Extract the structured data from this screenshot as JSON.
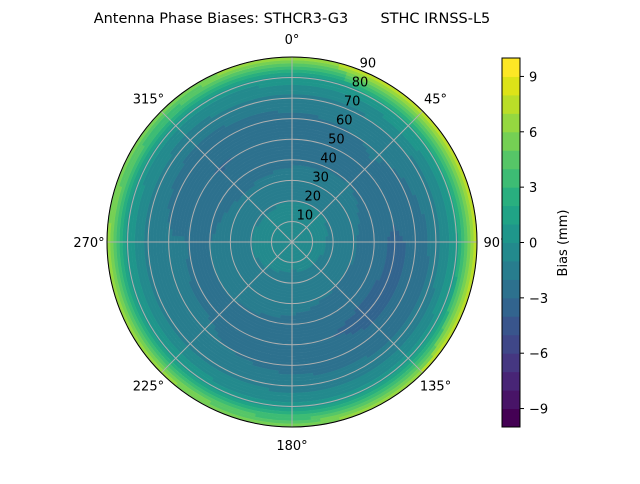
{
  "chart_data": {
    "type": "heatmap",
    "subtype": "polar-filled-contour",
    "title": "Antenna Phase Biases: STHCR3-G3       STHC IRNSS-L5",
    "colormap": "viridis",
    "colorbar": {
      "label": "Bias (mm)",
      "range": [
        -10,
        10
      ],
      "level_step": 1,
      "ticks": [
        -9,
        -6,
        -3,
        0,
        3,
        6,
        9
      ],
      "tick_labels": [
        "−9",
        "−6",
        "−3",
        "0",
        "3",
        "6",
        "9"
      ]
    },
    "theta_direction": "clockwise",
    "theta_zero": "top",
    "angle_ticks": [
      0,
      45,
      90,
      135,
      180,
      225,
      270,
      315
    ],
    "angle_tick_labels": [
      "0°",
      "45°",
      "90°",
      "135°",
      "180°",
      "225°",
      "270°",
      "315°"
    ],
    "radial_ticks": [
      10,
      20,
      30,
      40,
      50,
      60,
      70,
      80,
      90
    ],
    "radial_tick_labels": [
      "10",
      "20",
      "30",
      "40",
      "50",
      "60",
      "70",
      "80",
      "90"
    ],
    "radial_range": [
      0,
      90
    ],
    "grid": true,
    "zenith": [
      0,
      10,
      20,
      30,
      40,
      50,
      60,
      70,
      80,
      90
    ],
    "azimuth": [
      0,
      45,
      90,
      135,
      180,
      225,
      270,
      315
    ],
    "bias": [
      [
        -0.3,
        -0.3,
        -0.3,
        -0.3,
        -0.3,
        -0.3,
        -0.3,
        -0.3
      ],
      [
        -0.6,
        -0.5,
        -0.6,
        -0.7,
        -0.8,
        -0.7,
        -0.6,
        -0.7
      ],
      [
        -1.0,
        -1.0,
        -1.2,
        -1.3,
        -1.3,
        -1.1,
        -1.0,
        -1.1
      ],
      [
        -1.6,
        -1.5,
        -1.9,
        -2.0,
        -1.7,
        -1.5,
        -1.6,
        -1.8
      ],
      [
        -2.2,
        -2.0,
        -2.6,
        -2.7,
        -2.2,
        -2.0,
        -2.0,
        -2.5
      ],
      [
        -2.6,
        -2.1,
        -3.2,
        -3.3,
        -2.7,
        -2.1,
        -2.0,
        -3.1
      ],
      [
        -2.3,
        -1.9,
        -2.8,
        -2.8,
        -2.3,
        -1.9,
        -1.9,
        -2.6
      ],
      [
        -1.4,
        -1.2,
        -1.6,
        -1.7,
        -1.6,
        -1.3,
        -1.4,
        -1.6
      ],
      [
        0.6,
        1.0,
        0.8,
        0.5,
        0.4,
        0.6,
        0.7,
        0.4
      ],
      [
        7.0,
        8.5,
        8.3,
        7.5,
        6.0,
        6.5,
        6.5,
        6.0
      ]
    ]
  }
}
